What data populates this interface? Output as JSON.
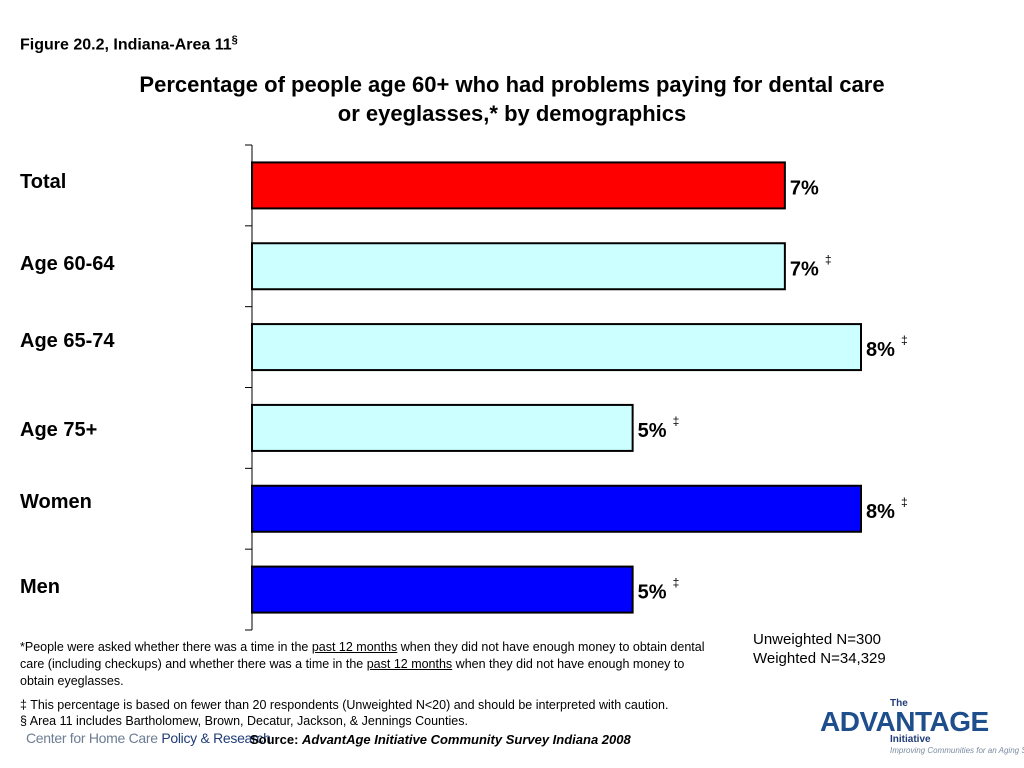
{
  "figure_label": "Figure 20.2, Indiana-Area 11",
  "figure_label_mark": "§",
  "title_line1": "Percentage of people age 60+ who had problems paying for dental care",
  "title_line2": "or eyeglasses,* by demographics",
  "chart_data": {
    "type": "bar",
    "orientation": "horizontal",
    "categories": [
      "Total",
      "Age 60-64",
      "Age 65-74",
      "Age 75+",
      "Women",
      "Men"
    ],
    "values": [
      7,
      7,
      8,
      5,
      8,
      5
    ],
    "data_labels": [
      "7%",
      "7%",
      "8%",
      "5%",
      "8%",
      "5%"
    ],
    "label_marks": [
      "",
      "‡",
      "‡",
      "‡",
      "‡",
      "‡"
    ],
    "bar_colors": [
      "#ff0000",
      "#ccffff",
      "#ccffff",
      "#ccffff",
      "#0000ff",
      "#0000ff"
    ],
    "xlim": [
      0,
      8.5
    ],
    "grid": false,
    "legend": "none"
  },
  "sample": {
    "unweighted": "Unweighted N=300",
    "weighted": "Weighted N=34,329"
  },
  "footnote": {
    "p1": "*People were asked whether there was a time in the ",
    "u1": "past 12 months",
    "p2": " when they did not have enough money to obtain dental care (including checkups) and whether there was a time in the ",
    "u2": "past 12 months",
    "p3": " when they did not have enough money to obtain eyeglasses."
  },
  "notes": {
    "caution": "‡ This percentage is based on fewer than 20 respondents (Unweighted N<20) and should be interpreted with caution.",
    "area": "§ Area 11 includes Bartholomew, Brown, Decatur, Jackson, & Jennings Counties."
  },
  "source": {
    "label": "Source: ",
    "text": "AdvantAge Initiative Community Survey Indiana 2008"
  },
  "logos": {
    "chpr_a": "Center for Home Care ",
    "chpr_b": "Policy & Research",
    "adv_the": "The",
    "adv_name": "ADVANTAGE",
    "adv_initiative": "Initiative",
    "adv_tagline": "Improving Communities for an Aging Society"
  },
  "colors": {
    "total": "#ff0000",
    "age": "#ccffff",
    "gender": "#0000ff"
  }
}
